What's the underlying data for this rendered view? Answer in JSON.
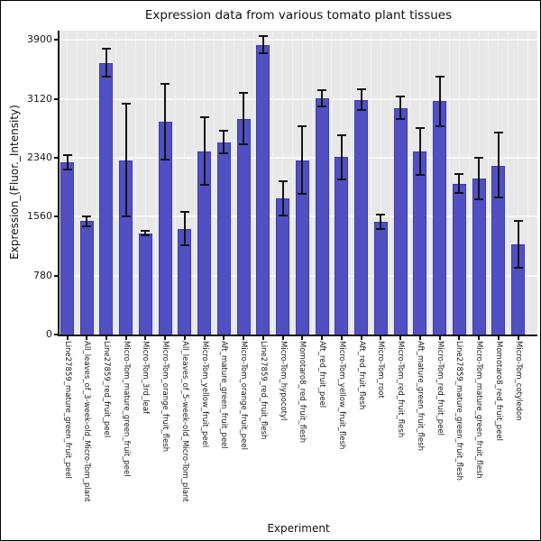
{
  "chart_data": {
    "type": "bar",
    "title": "Expression data from various tomato plant tissues",
    "xlabel": "Experiment",
    "ylabel": "Expression_(Fluor._Intensity)",
    "ylim": [
      0,
      4025
    ],
    "yticks": [
      0,
      780,
      1560,
      2340,
      3120,
      3900
    ],
    "grid": true,
    "legend": "none",
    "bar_color": "#5050c3",
    "bar_border_color": "#3c3cb0",
    "error_bar_color": "#141414",
    "panel_background": "#e8e8e8",
    "gridline_color": "#f7f7f7",
    "categories": [
      "Line27859_mature_green_fruit_peel",
      "All_leaves_of_3-week-old_Micro-Tom_plant",
      "Line27859_red_fruit_peel",
      "Micro-Tom_mature_green_fruit_peel",
      "Micro-Tom_3rd_leaf",
      "Micro-Tom_orange_fruit_flesh",
      "All_leaves_of_5-week-old_Micro-Tom_plant",
      "Micro-Tom_yellow_fruit_peel",
      "Aft_mature_green_fruit_peel",
      "Micro-Tom_orange_fruit_peel",
      "Line27859_red_fruit_flesh",
      "Micro-Tom_hypocotyl",
      "Momotaro8_red_fruit_flesh",
      "Aft_red_fruit_peel",
      "Micro-Tom_yellow_fruit_flesh",
      "Aft_red_fruit_flesh",
      "Micro-Tom_root",
      "Micro-Tom_red_fruit_flesh",
      "Aft_mature_green_fruit_flesh",
      "Micro-Tom_red_fruit_peel",
      "Line27859_mature_green_fruit_flesh",
      "Micro-Tom_mature_green_fruit_flesh",
      "Momotaro8_red_fruit_peel",
      "Micro-Tom_cotyledon"
    ],
    "values": [
      2280,
      1500,
      3600,
      2310,
      1340,
      2820,
      1400,
      2430,
      2550,
      2860,
      3840,
      1800,
      2310,
      3130,
      2350,
      3110,
      1490,
      3000,
      2420,
      3090,
      2000,
      2070,
      2240,
      1190
    ],
    "errors": [
      95,
      65,
      185,
      750,
      30,
      500,
      220,
      450,
      150,
      345,
      110,
      225,
      450,
      110,
      295,
      135,
      95,
      150,
      310,
      330,
      130,
      275,
      430,
      310
    ]
  }
}
